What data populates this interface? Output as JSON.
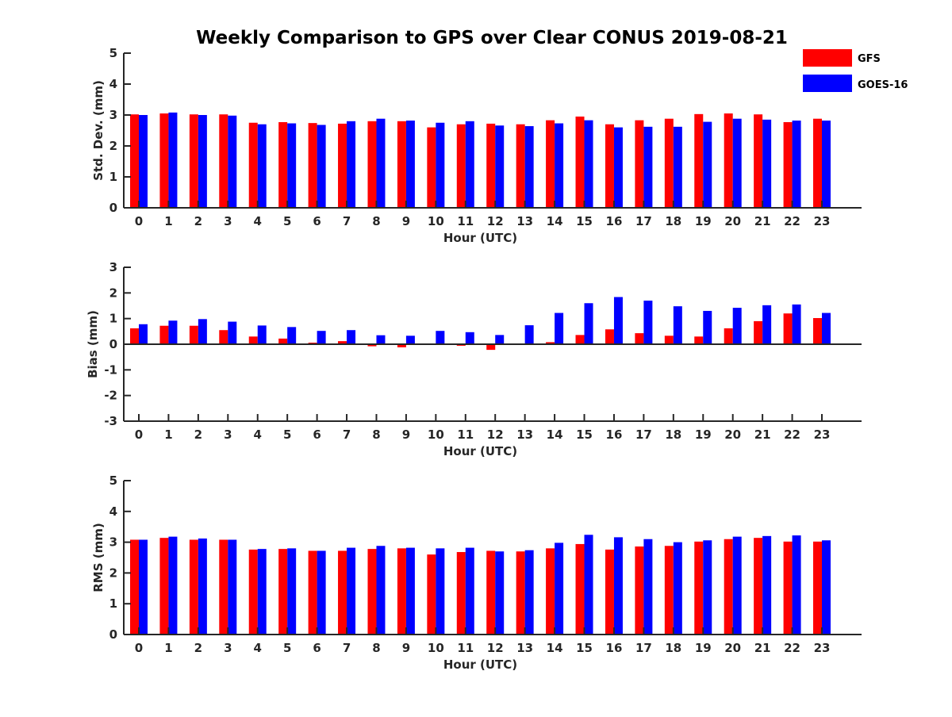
{
  "title": "Weekly Comparison to GPS over Clear CONUS 2019-08-21",
  "legend": {
    "placement": "top-right",
    "entries": [
      {
        "name": "GFS",
        "color": "#ff0000"
      },
      {
        "name": "GOES-16",
        "color": "#0000ff"
      }
    ]
  },
  "chart_data": [
    {
      "type": "bar",
      "ylabel": "Std. Dev. (mm)",
      "xlabel": "Hour (UTC)",
      "ylim": [
        0,
        5
      ],
      "yticks": [
        0,
        1,
        2,
        3,
        4,
        5
      ],
      "categories": [
        "0",
        "1",
        "2",
        "3",
        "4",
        "5",
        "6",
        "7",
        "8",
        "9",
        "10",
        "11",
        "12",
        "13",
        "14",
        "15",
        "16",
        "17",
        "18",
        "19",
        "20",
        "21",
        "22",
        "23"
      ],
      "series": [
        {
          "name": "GFS",
          "color": "#ff0000",
          "values": [
            3.02,
            3.05,
            3.02,
            3.02,
            2.75,
            2.77,
            2.74,
            2.72,
            2.8,
            2.8,
            2.6,
            2.7,
            2.72,
            2.7,
            2.83,
            2.95,
            2.7,
            2.83,
            2.88,
            3.03,
            3.05,
            3.02,
            2.77,
            2.88
          ]
        },
        {
          "name": "GOES-16",
          "color": "#0000ff",
          "values": [
            3.0,
            3.08,
            3.0,
            2.98,
            2.7,
            2.73,
            2.68,
            2.8,
            2.88,
            2.82,
            2.75,
            2.8,
            2.66,
            2.64,
            2.73,
            2.83,
            2.6,
            2.62,
            2.62,
            2.78,
            2.88,
            2.85,
            2.82,
            2.82
          ]
        }
      ]
    },
    {
      "type": "bar",
      "ylabel": "Bias (mm)",
      "xlabel": "Hour (UTC)",
      "ylim": [
        -3,
        3
      ],
      "yticks": [
        -3,
        -2,
        -1,
        0,
        1,
        2,
        3
      ],
      "categories": [
        "0",
        "1",
        "2",
        "3",
        "4",
        "5",
        "6",
        "7",
        "8",
        "9",
        "10",
        "11",
        "12",
        "13",
        "14",
        "15",
        "16",
        "17",
        "18",
        "19",
        "20",
        "21",
        "22",
        "23"
      ],
      "series": [
        {
          "name": "GFS",
          "color": "#ff0000",
          "values": [
            0.62,
            0.72,
            0.72,
            0.55,
            0.3,
            0.22,
            0.06,
            0.12,
            -0.08,
            -0.12,
            0.0,
            -0.06,
            -0.22,
            -0.03,
            0.08,
            0.36,
            0.58,
            0.43,
            0.33,
            0.3,
            0.62,
            0.9,
            1.2,
            1.02
          ]
        },
        {
          "name": "GOES-16",
          "color": "#0000ff",
          "values": [
            0.78,
            0.92,
            0.98,
            0.88,
            0.73,
            0.67,
            0.52,
            0.55,
            0.35,
            0.33,
            0.52,
            0.47,
            0.36,
            0.74,
            1.22,
            1.6,
            1.84,
            1.7,
            1.48,
            1.3,
            1.42,
            1.52,
            1.55,
            1.22
          ]
        }
      ]
    },
    {
      "type": "bar",
      "ylabel": "RMS (mm)",
      "xlabel": "Hour (UTC)",
      "ylim": [
        0,
        5
      ],
      "yticks": [
        0,
        1,
        2,
        3,
        4,
        5
      ],
      "categories": [
        "0",
        "1",
        "2",
        "3",
        "4",
        "5",
        "6",
        "7",
        "8",
        "9",
        "10",
        "11",
        "12",
        "13",
        "14",
        "15",
        "16",
        "17",
        "18",
        "19",
        "20",
        "21",
        "22",
        "23"
      ],
      "series": [
        {
          "name": "GFS",
          "color": "#ff0000",
          "values": [
            3.08,
            3.14,
            3.08,
            3.08,
            2.76,
            2.78,
            2.72,
            2.72,
            2.78,
            2.8,
            2.6,
            2.68,
            2.72,
            2.7,
            2.8,
            2.94,
            2.76,
            2.86,
            2.88,
            3.02,
            3.1,
            3.14,
            3.02,
            3.02
          ]
        },
        {
          "name": "GOES-16",
          "color": "#0000ff",
          "values": [
            3.08,
            3.18,
            3.12,
            3.08,
            2.78,
            2.8,
            2.72,
            2.82,
            2.88,
            2.82,
            2.8,
            2.82,
            2.7,
            2.74,
            2.98,
            3.24,
            3.16,
            3.1,
            3.0,
            3.06,
            3.18,
            3.2,
            3.22,
            3.06
          ]
        }
      ]
    }
  ]
}
